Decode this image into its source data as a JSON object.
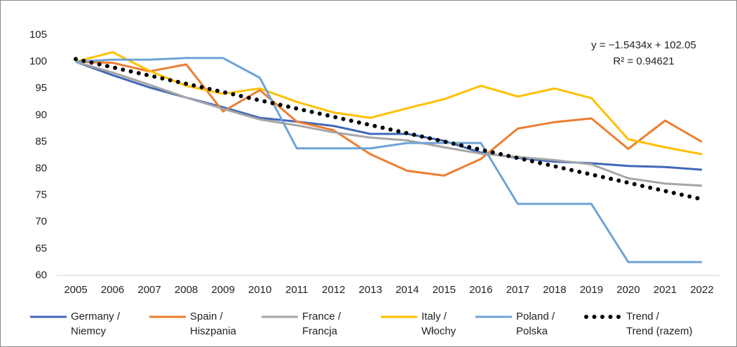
{
  "chart_data": {
    "type": "line",
    "categories": [
      "2005",
      "2006",
      "2007",
      "2008",
      "2009",
      "2010",
      "2011",
      "2012",
      "2013",
      "2014",
      "2015",
      "2016",
      "2017",
      "2018",
      "2019",
      "2020",
      "2021",
      "2022"
    ],
    "series": [
      {
        "name": "Germany /\nNiemcy",
        "color": "#4068b8",
        "values": [
          100,
          97.5,
          95.2,
          93.3,
          91.5,
          89.5,
          88.8,
          88,
          86.5,
          86.5,
          85.2,
          83,
          82,
          81.3,
          81,
          80.5,
          80.3,
          79.8
        ]
      },
      {
        "name": "Spain /\nHiszpania",
        "color": "#ed7d31",
        "values": [
          100,
          99.8,
          98.2,
          99.5,
          90.7,
          94.7,
          88.8,
          87.2,
          82.7,
          79.6,
          78.7,
          81.8,
          87.5,
          88.7,
          89.4,
          83.7,
          89,
          85
        ]
      },
      {
        "name": "France /\nFrancja",
        "color": "#a5a5a5",
        "values": [
          100,
          98,
          95.7,
          93.3,
          91.2,
          89.2,
          88.1,
          86.8,
          85.8,
          85.3,
          84,
          82.8,
          82.2,
          81.6,
          80.8,
          78.2,
          77.2,
          76.8
        ]
      },
      {
        "name": "Italy /\nWłochy",
        "color": "#ffc000",
        "values": [
          100,
          101.8,
          98.3,
          95.5,
          94,
          95,
          92.5,
          90.5,
          89.5,
          91.3,
          93,
          95.5,
          93.5,
          95,
          93.2,
          85.5,
          84,
          82.7
        ]
      },
      {
        "name": "Poland /\nPolska",
        "color": "#6fa3d6",
        "values": [
          100,
          100.4,
          100.4,
          100.7,
          100.7,
          97,
          83.8,
          83.8,
          83.8,
          84.8,
          84.8,
          84.8,
          73.4,
          73.4,
          73.4,
          62.5,
          62.5,
          62.5
        ]
      },
      {
        "name": "Trend /\nTrend (razem)",
        "color": "#000000",
        "dotted": true,
        "values": [
          100.51,
          98.96,
          97.42,
          95.88,
          94.33,
          92.79,
          91.25,
          89.7,
          88.16,
          86.62,
          85.07,
          83.53,
          81.99,
          80.44,
          78.9,
          77.36,
          75.81,
          74.27
        ]
      }
    ],
    "annotations": [
      "y = −1.5434x + 102.05",
      "R² = 0.94621"
    ],
    "ylim": [
      60,
      105
    ],
    "yticks": [
      60,
      65,
      70,
      75,
      80,
      85,
      90,
      95,
      100,
      105
    ],
    "grid": false,
    "legend": "bottom"
  }
}
